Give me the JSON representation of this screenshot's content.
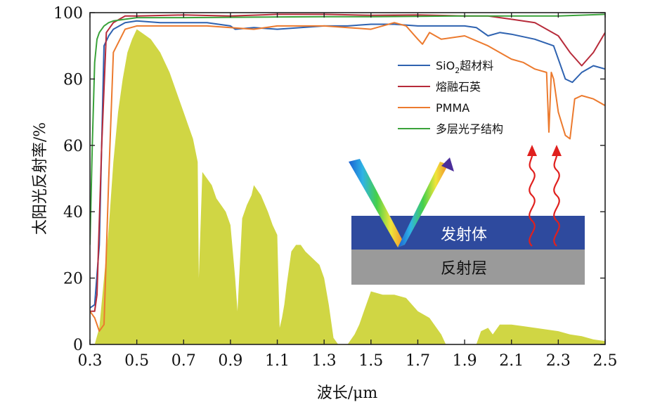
{
  "chart_data": {
    "type": "line",
    "xlabel": "波长/μm",
    "ylabel": "太阳光反射率/%",
    "xlim": [
      0.3,
      2.5
    ],
    "ylim": [
      0,
      100
    ],
    "xticks": [
      0.3,
      0.5,
      0.7,
      0.9,
      1.1,
      1.3,
      1.5,
      1.7,
      1.9,
      2.1,
      2.3,
      2.5
    ],
    "xtick_labels": [
      "0.3",
      "0.5",
      "0.7",
      "0.9",
      "1.1",
      "1.3",
      "1.5",
      "1.7",
      "1.9",
      "2.1",
      "2.3",
      "2.5"
    ],
    "yticks": [
      0,
      20,
      40,
      60,
      80,
      100
    ],
    "ytick_labels": [
      "0",
      "20",
      "40",
      "60",
      "80",
      "100"
    ],
    "grid": false,
    "legend_position": "top-right",
    "series": [
      {
        "name_main": "SiO",
        "name_sub": "2",
        "name_tail": "超材料",
        "color": "#2e62b0",
        "x": [
          0.3,
          0.32,
          0.34,
          0.36,
          0.38,
          0.4,
          0.45,
          0.5,
          0.6,
          0.7,
          0.8,
          0.9,
          0.92,
          1.0,
          1.1,
          1.2,
          1.3,
          1.4,
          1.5,
          1.6,
          1.7,
          1.8,
          1.9,
          1.95,
          2.0,
          2.05,
          2.1,
          2.2,
          2.28,
          2.3,
          2.33,
          2.36,
          2.4,
          2.45,
          2.5
        ],
        "y": [
          11,
          12,
          30,
          90,
          93,
          95,
          97,
          97.5,
          97,
          97,
          97,
          96,
          95,
          95.5,
          95,
          95.5,
          96,
          96,
          96.5,
          96.5,
          96,
          96,
          96,
          95.5,
          93,
          94,
          93.5,
          92,
          90,
          86,
          80,
          79,
          82,
          84,
          83
        ]
      },
      {
        "name": "熔融石英",
        "color": "#b72b3a",
        "x": [
          0.3,
          0.32,
          0.33,
          0.35,
          0.37,
          0.4,
          0.45,
          0.5,
          0.7,
          0.9,
          1.1,
          1.3,
          1.5,
          1.7,
          1.9,
          2.0,
          2.1,
          2.2,
          2.3,
          2.35,
          2.4,
          2.45,
          2.5
        ],
        "y": [
          10,
          10,
          15,
          60,
          94,
          97,
          99,
          99,
          99.3,
          99,
          99.5,
          99.5,
          99.2,
          99.3,
          99,
          99,
          98,
          97,
          93,
          88,
          84,
          88,
          94
        ]
      },
      {
        "name": "PMMA",
        "color": "#ec7a2e",
        "x": [
          0.3,
          0.32,
          0.34,
          0.36,
          0.38,
          0.4,
          0.45,
          0.5,
          0.6,
          0.7,
          0.8,
          0.9,
          1.0,
          1.1,
          1.2,
          1.3,
          1.4,
          1.5,
          1.6,
          1.65,
          1.7,
          1.72,
          1.75,
          1.8,
          1.9,
          2.0,
          2.1,
          2.15,
          2.2,
          2.25,
          2.26,
          2.27,
          2.28,
          2.3,
          2.33,
          2.35,
          2.37,
          2.4,
          2.45,
          2.5
        ],
        "y": [
          10,
          8,
          4,
          6,
          50,
          88,
          95,
          96,
          96,
          96,
          96,
          95.5,
          95,
          96,
          96,
          96,
          95.5,
          95,
          97,
          96,
          92,
          90.5,
          94,
          92,
          93,
          90,
          86,
          85,
          83,
          82,
          64,
          82,
          80,
          70,
          63,
          62,
          74,
          75,
          74,
          72
        ]
      },
      {
        "name": "多层光子结构",
        "color": "#3aa23a",
        "x": [
          0.3,
          0.31,
          0.32,
          0.33,
          0.34,
          0.36,
          0.38,
          0.4,
          0.45,
          0.5,
          0.6,
          0.7,
          0.9,
          1.1,
          1.3,
          1.5,
          1.7,
          1.9,
          2.1,
          2.3,
          2.5
        ],
        "y": [
          30,
          60,
          85,
          92,
          94,
          96,
          97,
          97.5,
          98,
          98.5,
          98.5,
          98.5,
          98.6,
          98.7,
          98.8,
          98.8,
          98.9,
          99,
          99,
          99,
          99.5
        ]
      }
    ],
    "solar_spectrum_fill": {
      "color": "#d0d644",
      "x": [
        0.3,
        0.32,
        0.34,
        0.36,
        0.38,
        0.4,
        0.42,
        0.44,
        0.46,
        0.48,
        0.5,
        0.52,
        0.54,
        0.56,
        0.58,
        0.6,
        0.62,
        0.64,
        0.66,
        0.68,
        0.7,
        0.72,
        0.74,
        0.76,
        0.765,
        0.78,
        0.8,
        0.82,
        0.84,
        0.86,
        0.88,
        0.9,
        0.92,
        0.93,
        0.95,
        0.97,
        0.99,
        1.0,
        1.03,
        1.06,
        1.08,
        1.1,
        1.11,
        1.12,
        1.13,
        1.14,
        1.16,
        1.18,
        1.2,
        1.22,
        1.25,
        1.28,
        1.3,
        1.32,
        1.34,
        1.36,
        1.4,
        1.43,
        1.45,
        1.47,
        1.5,
        1.55,
        1.6,
        1.65,
        1.7,
        1.75,
        1.78,
        1.8,
        1.82,
        1.95,
        1.97,
        2.0,
        2.02,
        2.05,
        2.1,
        2.15,
        2.2,
        2.25,
        2.3,
        2.35,
        2.4,
        2.45,
        2.5
      ],
      "y": [
        0,
        0,
        5,
        20,
        35,
        55,
        70,
        80,
        88,
        92,
        95,
        94,
        93,
        92,
        90,
        88,
        85,
        82,
        78,
        74,
        70,
        66,
        62,
        55,
        20,
        52,
        50,
        48,
        44,
        42,
        40,
        36,
        20,
        10,
        38,
        42,
        45,
        48,
        45,
        40,
        36,
        33,
        5,
        8,
        12,
        18,
        28,
        30,
        30,
        28,
        26,
        24,
        20,
        12,
        2,
        0,
        0,
        3,
        6,
        10,
        16,
        15,
        15,
        14,
        10,
        8,
        5,
        3,
        0,
        0,
        4,
        5,
        3,
        6,
        6,
        5.5,
        5,
        4.5,
        4,
        3,
        2.5,
        1.5,
        1
      ]
    },
    "legend": {
      "series_0_sub": "2"
    },
    "diagram": {
      "emitter_label": "发射体",
      "reflector_label": "反射层",
      "emitter_color": "#2e4a9e",
      "reflector_color": "#9a9a9a",
      "arrow_color": "#e0201e"
    }
  }
}
